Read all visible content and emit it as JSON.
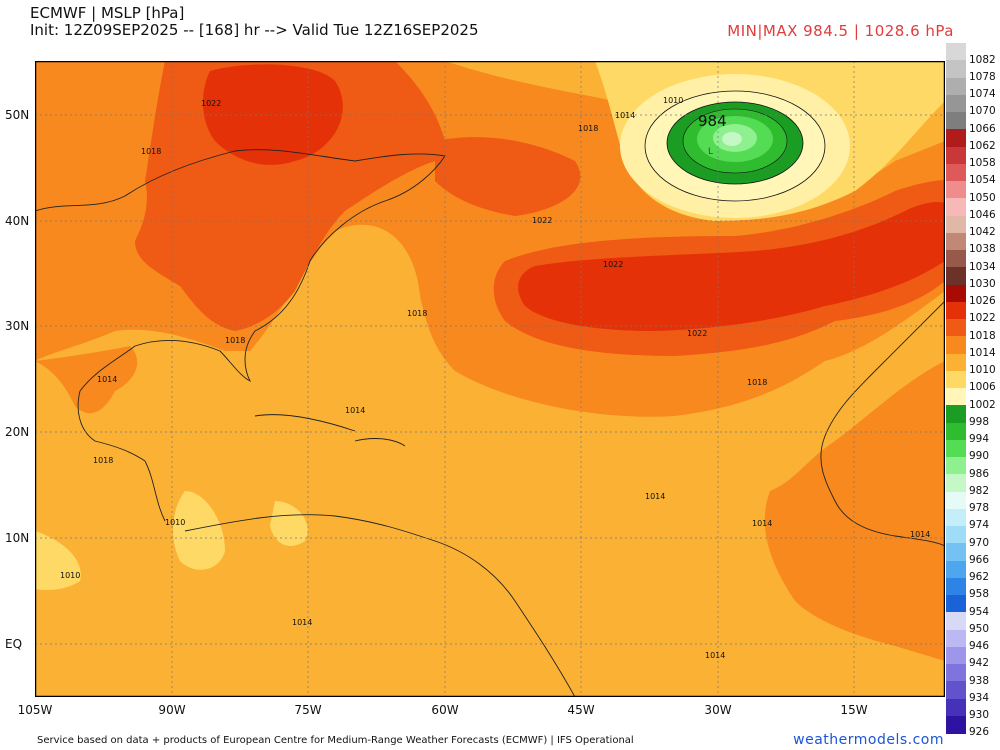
{
  "header": {
    "title": "ECMWF | MSLP [hPa]",
    "subtitle": "Init: 12Z09SEP2025 -- [168] hr --> Valid Tue 12Z16SEP2025",
    "minmax": "MIN|MAX 984.5 | 1028.6 hPa"
  },
  "map": {
    "lat_labels": [
      "50N",
      "40N",
      "30N",
      "20N",
      "10N",
      "EQ"
    ],
    "lon_labels": [
      "105W",
      "90W",
      "75W",
      "60W",
      "45W",
      "30W",
      "15W"
    ],
    "contour_labels": [
      "1022",
      "1018",
      "1014",
      "1010",
      "1018",
      "1022",
      "1022",
      "1022",
      "1018",
      "1018",
      "1018",
      "1014",
      "1014",
      "1014",
      "1010",
      "1010",
      "1014",
      "1014",
      "1014",
      "1014",
      "1018"
    ],
    "low_center": {
      "label": "984",
      "value": 984.5,
      "lon": -30,
      "lat": 50
    },
    "colors": {
      "p1010": "#ffd966",
      "p1014": "#fbb234",
      "p1018": "#f7891e",
      "p1022": "#ef5a14",
      "p1026": "#e43108",
      "p1030": "#b80d06"
    }
  },
  "legend": {
    "levels": [
      "1082",
      "1078",
      "1074",
      "1070",
      "1066",
      "1062",
      "1058",
      "1054",
      "1050",
      "1046",
      "1042",
      "1038",
      "1034",
      "1030",
      "1026",
      "1022",
      "1018",
      "1014",
      "1010",
      "1006",
      "1002",
      "998",
      "994",
      "990",
      "986",
      "982",
      "978",
      "974",
      "970",
      "966",
      "962",
      "958",
      "954",
      "950",
      "946",
      "942",
      "938",
      "934",
      "930",
      "926"
    ],
    "colors": [
      "#d8d8d8",
      "#c4c4c4",
      "#aeaeae",
      "#969696",
      "#7e7e7e",
      "#b01c1c",
      "#c93838",
      "#de5a5a",
      "#ef8c8c",
      "#f7b8b8",
      "#e1b8a8",
      "#c28876",
      "#96594a",
      "#6c3128",
      "#a80b04",
      "#e43108",
      "#ef5a14",
      "#f7891e",
      "#fbb234",
      "#ffd966",
      "#fff6b8",
      "#1b9c22",
      "#2fbc2f",
      "#55dc55",
      "#8ef08e",
      "#c4f8c4",
      "#e4fbf8",
      "#c4eefa",
      "#9fdcf7",
      "#74c2f3",
      "#4ea6ef",
      "#2d84e6",
      "#1a62d8",
      "#d8d8f7",
      "#bbb8f3",
      "#9e96ea",
      "#7f74dd",
      "#6253cc",
      "#4632b9",
      "#2e13a3"
    ]
  },
  "footer": {
    "credit": "Service based on data + products of European Centre for Medium-Range Weather Forecasts (ECMWF) | IFS Operational",
    "brand": "weathermodels.com"
  }
}
